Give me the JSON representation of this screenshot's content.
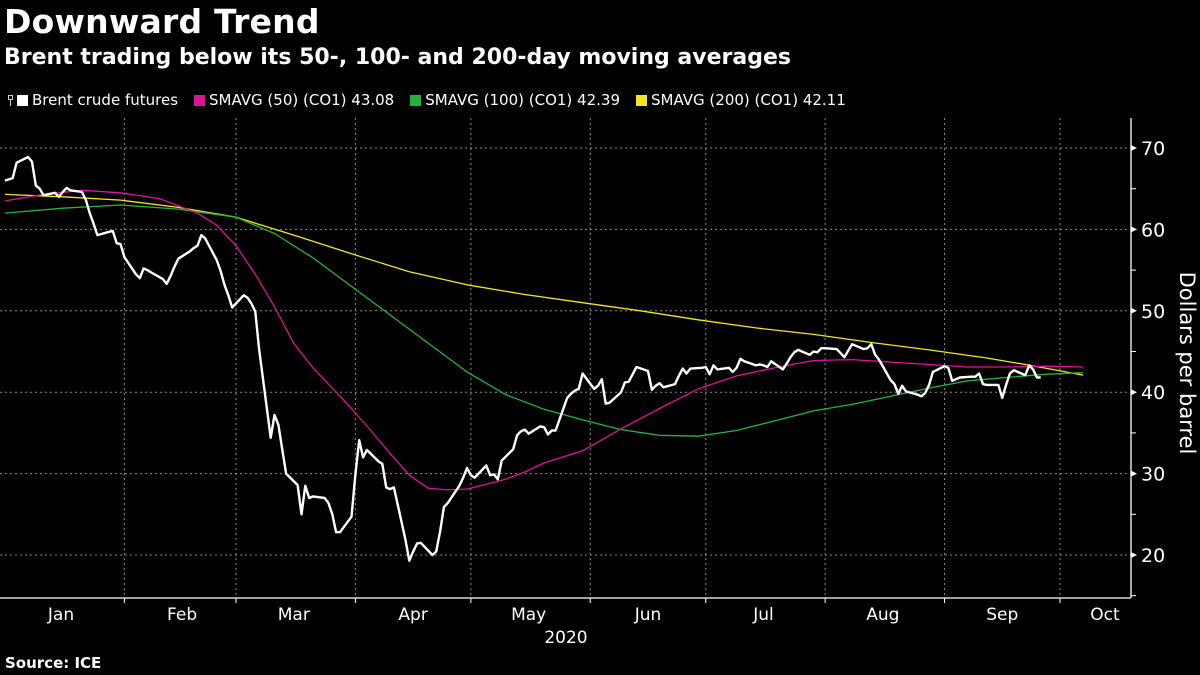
{
  "title": "Downward Trend",
  "subtitle": "Brent trading below its 50-, 100- and 200-day moving averages",
  "source": "Source: ICE",
  "legend": [
    {
      "label": "Brent crude futures",
      "color": "#ffffff"
    },
    {
      "label": "SMAVG (50) (CO1) 43.08",
      "color": "#e0119b"
    },
    {
      "label": "SMAVG (100) (CO1) 42.39",
      "color": "#22b43c"
    },
    {
      "label": "SMAVG (200) (CO1) 42.11",
      "color": "#f2e61e"
    }
  ],
  "chart_data": {
    "type": "line",
    "title": "Downward Trend",
    "subtitle": "Brent trading below its 50-, 100- and 200-day moving averages",
    "xlabel": "2020",
    "ylabel": "Dollars per barrel",
    "x_ticks": [
      "Jan",
      "Feb",
      "Mar",
      "Apr",
      "May",
      "Jun",
      "Jul",
      "Aug",
      "Sep",
      "Oct"
    ],
    "x_tick_days": [
      15,
      46,
      75,
      106,
      136,
      167,
      197,
      228,
      259,
      289
    ],
    "x_gridline_days": [
      31,
      60,
      91,
      121,
      152,
      182,
      213,
      244,
      274
    ],
    "y_ticks": [
      20,
      30,
      40,
      50,
      60,
      70
    ],
    "ylim": [
      15,
      73.5
    ],
    "xlim_days": [
      0,
      292
    ],
    "grid": true,
    "axis_side": "right",
    "legend_position": "top-left",
    "series": [
      {
        "name": "Brent crude futures",
        "color": "#ffffff",
        "x_days": [
          0,
          2,
          3,
          6,
          7,
          8,
          9,
          10,
          13,
          14,
          15,
          16,
          17,
          20,
          21,
          22,
          23,
          24,
          27,
          28,
          29,
          30,
          31,
          34,
          35,
          36,
          37,
          38,
          41,
          42,
          43,
          44,
          45,
          48,
          49,
          50,
          51,
          52,
          55,
          56,
          57,
          58,
          59,
          62,
          63,
          64,
          65,
          66,
          69,
          70,
          71,
          72,
          73,
          76,
          77,
          78,
          79,
          80,
          83,
          84,
          85,
          86,
          87,
          90,
          91,
          92,
          93,
          94,
          97,
          98,
          99,
          100,
          101,
          104,
          105,
          106,
          107,
          108,
          111,
          112,
          113,
          114,
          115,
          118,
          119,
          120,
          121,
          122,
          125,
          126,
          127,
          128,
          129,
          132,
          133,
          134,
          135,
          136,
          139,
          140,
          141,
          142,
          143,
          146,
          147,
          148,
          149,
          150,
          153,
          154,
          155,
          156,
          157,
          160,
          161,
          162,
          163,
          164,
          167,
          168,
          169,
          170,
          171,
          174,
          175,
          176,
          177,
          178,
          181,
          182,
          183,
          184,
          185,
          188,
          189,
          190,
          191,
          192,
          195,
          196,
          197,
          198,
          199,
          202,
          203,
          204,
          205,
          206,
          209,
          210,
          211,
          212,
          213,
          216,
          217,
          218,
          219,
          220,
          223,
          224,
          225,
          226,
          227,
          230,
          231,
          232,
          233,
          234,
          237,
          238,
          239,
          240,
          241,
          244,
          245,
          246,
          247,
          248,
          251,
          252,
          253,
          254,
          255,
          258,
          259,
          260,
          261,
          262,
          265,
          266,
          267,
          268,
          269,
          272,
          273,
          274,
          275,
          276,
          279,
          280
        ],
        "values": [
          66.0,
          66.3,
          68.2,
          68.9,
          68.3,
          65.4,
          65.0,
          64.2,
          64.5,
          64.0,
          64.6,
          65.1,
          64.8,
          64.6,
          63.6,
          62.0,
          60.7,
          59.3,
          59.7,
          59.8,
          58.3,
          58.2,
          56.6,
          54.5,
          54.0,
          55.2,
          55.0,
          54.7,
          53.9,
          53.3,
          54.3,
          55.4,
          56.4,
          57.3,
          57.7,
          58.0,
          59.3,
          58.9,
          56.2,
          54.9,
          53.2,
          51.9,
          50.4,
          51.9,
          51.6,
          50.9,
          49.9,
          45.3,
          34.4,
          37.2,
          36.0,
          33.0,
          30.0,
          28.6,
          25.0,
          28.5,
          27.0,
          27.2,
          27.0,
          26.4,
          25.0,
          22.8,
          22.8,
          24.7,
          29.9,
          34.1,
          32.0,
          32.9,
          31.5,
          31.2,
          28.3,
          28.1,
          28.3,
          21.9,
          19.3,
          20.4,
          21.4,
          21.5,
          20.0,
          20.4,
          22.9,
          25.9,
          26.4,
          28.5,
          29.5,
          30.7,
          29.8,
          29.5,
          31.0,
          29.8,
          29.9,
          29.3,
          31.6,
          33.0,
          34.7,
          35.2,
          35.4,
          34.9,
          35.8,
          35.7,
          34.8,
          35.3,
          35.3,
          39.3,
          39.8,
          40.2,
          40.4,
          42.3,
          40.4,
          40.8,
          41.6,
          38.6,
          38.7,
          40.0,
          41.2,
          41.3,
          42.2,
          43.1,
          42.6,
          40.3,
          40.8,
          41.1,
          40.6,
          41.0,
          42.0,
          42.9,
          42.3,
          42.9,
          43.0,
          43.1,
          42.2,
          43.3,
          42.8,
          43.0,
          42.5,
          43.0,
          44.1,
          43.8,
          43.3,
          43.4,
          43.3,
          43.1,
          43.8,
          42.8,
          43.5,
          44.3,
          44.9,
          45.2,
          44.6,
          45.0,
          44.9,
          45.4,
          45.4,
          45.3,
          44.8,
          44.3,
          45.1,
          45.9,
          45.3,
          45.4,
          45.9,
          44.6,
          44.0,
          41.5,
          41.0,
          39.8,
          40.8,
          40.1,
          39.7,
          39.5,
          39.9,
          40.9,
          42.5,
          43.2,
          43.0,
          41.4,
          41.6,
          41.8,
          41.9,
          41.9,
          42.3,
          41.0,
          40.9,
          40.9,
          39.3,
          40.9,
          42.3,
          42.7,
          42.1,
          43.3,
          42.8,
          41.8,
          41.8
        ]
      },
      {
        "name": "SMAVG (50) (CO1)",
        "color": "#e0119b",
        "last_value": 43.08,
        "x_days": [
          0,
          10,
          20,
          30,
          40,
          50,
          55,
          60,
          65,
          70,
          75,
          80,
          85,
          90,
          95,
          100,
          105,
          110,
          115,
          120,
          125,
          130,
          135,
          140,
          150,
          160,
          170,
          180,
          190,
          200,
          210,
          220,
          230,
          240,
          250,
          260,
          270,
          280
        ],
        "values": [
          63.5,
          64.3,
          64.8,
          64.5,
          63.8,
          62.0,
          60.5,
          58.0,
          54.5,
          50.5,
          46.0,
          43.0,
          40.5,
          38.0,
          35.3,
          32.5,
          29.8,
          28.2,
          28.0,
          28.1,
          28.7,
          29.3,
          30.2,
          31.3,
          32.8,
          35.5,
          38.0,
          40.4,
          42.0,
          43.0,
          43.9,
          44.0,
          43.7,
          43.4,
          43.1,
          43.1,
          43.2,
          43.1
        ]
      },
      {
        "name": "SMAVG (100) (CO1)",
        "color": "#22b43c",
        "last_value": 42.39,
        "x_days": [
          0,
          15,
          30,
          45,
          60,
          70,
          80,
          90,
          100,
          110,
          120,
          130,
          140,
          150,
          160,
          170,
          180,
          190,
          200,
          210,
          220,
          230,
          240,
          250,
          260,
          270,
          280
        ],
        "values": [
          62.0,
          62.6,
          63.0,
          62.5,
          61.5,
          59.5,
          56.5,
          53.0,
          49.5,
          46.0,
          42.5,
          39.7,
          37.9,
          36.6,
          35.4,
          34.7,
          34.6,
          35.3,
          36.5,
          37.7,
          38.5,
          39.5,
          40.5,
          41.4,
          41.8,
          42.2,
          42.4
        ]
      },
      {
        "name": "SMAVG (200) (CO1)",
        "color": "#f2e61e",
        "last_value": 42.11,
        "x_days": [
          0,
          15,
          30,
          45,
          60,
          75,
          90,
          105,
          120,
          135,
          150,
          165,
          180,
          195,
          210,
          225,
          240,
          255,
          265,
          272,
          280
        ],
        "values": [
          64.3,
          64.0,
          63.6,
          62.7,
          61.5,
          59.3,
          57.0,
          54.8,
          53.2,
          52.0,
          51.0,
          50.0,
          48.9,
          47.9,
          47.1,
          46.1,
          45.2,
          44.2,
          43.4,
          42.8,
          42.1
        ]
      }
    ]
  },
  "axes": {
    "x_year_label": "2020",
    "y_title": "Dollars per barrel"
  }
}
